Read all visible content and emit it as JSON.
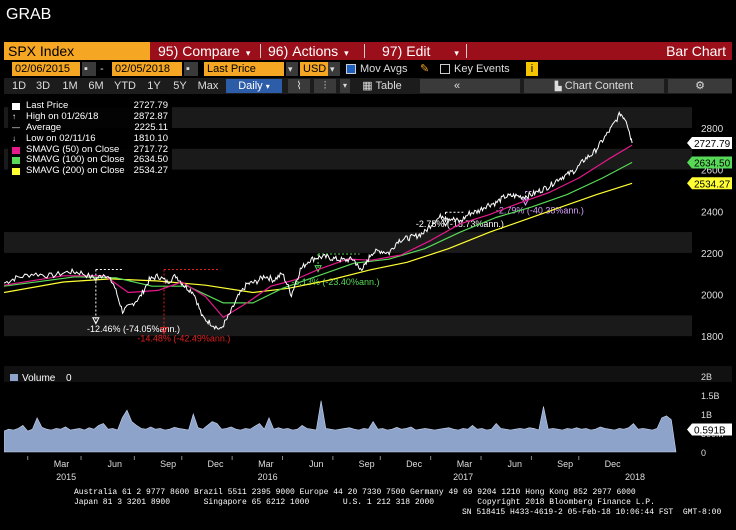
{
  "window": {
    "title": "GRAB"
  },
  "command_bar": {
    "security": "SPX Index",
    "compare": {
      "num": "95)",
      "label": "Compare"
    },
    "actions": {
      "num": "96)",
      "label": "Actions"
    },
    "edit": {
      "num": "97)",
      "label": "Edit"
    },
    "chart_type": "Bar Chart"
  },
  "params": {
    "start_date": "02/06/2015",
    "end_date": "02/05/2018",
    "field": "Last Price",
    "currency": "USD",
    "mov_avgs_label": "Mov Avgs",
    "mov_avgs_checked": true,
    "key_events_label": "Key Events",
    "key_events_checked": false,
    "info_badge": "i"
  },
  "range_bar": {
    "ranges": [
      "1D",
      "3D",
      "1M",
      "6M",
      "YTD",
      "1Y",
      "5Y",
      "Max"
    ],
    "frequency": "Daily",
    "table_label": "Table",
    "chart_content_label": "Chart Content"
  },
  "legend": [
    {
      "label": "Last Price",
      "value": "2727.79",
      "color": "#ffffff",
      "marker": "swatch"
    },
    {
      "label": "High on 01/26/18",
      "value": "2872.87",
      "color": "#ffffff",
      "marker": "up"
    },
    {
      "label": "Average",
      "value": "2225.11",
      "color": "#ffffff",
      "marker": "dash"
    },
    {
      "label": "Low on 02/11/16",
      "value": "1810.10",
      "color": "#ffffff",
      "marker": "down"
    },
    {
      "label": "SMAVG (50) on Close",
      "value": "2717.72",
      "color": "#e5198c",
      "marker": "swatch"
    },
    {
      "label": "SMAVG (100) on Close",
      "value": "2634.50",
      "color": "#57d957",
      "marker": "swatch"
    },
    {
      "label": "SMAVG (200) on Close",
      "value": "2534.27",
      "color": "#ffff33",
      "marker": "swatch"
    }
  ],
  "chart_data": {
    "type": "line",
    "y_ticks": [
      1800,
      2000,
      2200,
      2400,
      2600,
      2800
    ],
    "ylim": [
      1700,
      2920
    ],
    "x_labels": [
      {
        "t": 0.07,
        "label": "Mar"
      },
      {
        "t": 0.16,
        "label": "Jun"
      },
      {
        "t": 0.25,
        "label": "Sep"
      },
      {
        "t": 0.33,
        "label": "Dec"
      },
      {
        "t": 0.415,
        "label": "Mar"
      },
      {
        "t": 0.5,
        "label": "Jun"
      },
      {
        "t": 0.585,
        "label": "Sep"
      },
      {
        "t": 0.665,
        "label": "Dec"
      },
      {
        "t": 0.75,
        "label": "Mar"
      },
      {
        "t": 0.835,
        "label": "Jun"
      },
      {
        "t": 0.92,
        "label": "Sep"
      },
      {
        "t": 1.0,
        "label": "Dec"
      }
    ],
    "year_labels": [
      {
        "t": 0.115,
        "label": "2015"
      },
      {
        "t": 0.455,
        "label": "2016"
      },
      {
        "t": 0.785,
        "label": "2017"
      },
      {
        "t": 1.075,
        "label": "2018"
      }
    ],
    "last_price": {
      "name": "Last Price",
      "values": [
        [
          0.0,
          2055
        ],
        [
          0.02,
          2080
        ],
        [
          0.05,
          2100
        ],
        [
          0.08,
          2090
        ],
        [
          0.11,
          2110
        ],
        [
          0.13,
          2105
        ],
        [
          0.155,
          2075
        ],
        [
          0.17,
          2100
        ],
        [
          0.185,
          2050
        ],
        [
          0.2,
          1920
        ],
        [
          0.215,
          1950
        ],
        [
          0.23,
          1990
        ],
        [
          0.245,
          2070
        ],
        [
          0.26,
          2090
        ],
        [
          0.275,
          2060
        ],
        [
          0.29,
          2090
        ],
        [
          0.305,
          2040
        ],
        [
          0.32,
          2010
        ],
        [
          0.335,
          1890
        ],
        [
          0.35,
          1860
        ],
        [
          0.365,
          1830
        ],
        [
          0.38,
          1900
        ],
        [
          0.395,
          1990
        ],
        [
          0.41,
          2050
        ],
        [
          0.425,
          2060
        ],
        [
          0.44,
          2090
        ],
        [
          0.455,
          2070
        ],
        [
          0.47,
          2100
        ],
        [
          0.485,
          2000
        ],
        [
          0.5,
          2120
        ],
        [
          0.515,
          2165
        ],
        [
          0.53,
          2180
        ],
        [
          0.545,
          2180
        ],
        [
          0.56,
          2170
        ],
        [
          0.575,
          2165
        ],
        [
          0.59,
          2170
        ],
        [
          0.6,
          2120
        ],
        [
          0.61,
          2140
        ],
        [
          0.62,
          2200
        ],
        [
          0.635,
          2210
        ],
        [
          0.65,
          2200
        ],
        [
          0.665,
          2260
        ],
        [
          0.68,
          2270
        ],
        [
          0.695,
          2280
        ],
        [
          0.71,
          2300
        ],
        [
          0.725,
          2350
        ],
        [
          0.74,
          2380
        ],
        [
          0.755,
          2365
        ],
        [
          0.77,
          2350
        ],
        [
          0.785,
          2390
        ],
        [
          0.8,
          2400
        ],
        [
          0.815,
          2430
        ],
        [
          0.83,
          2440
        ],
        [
          0.845,
          2470
        ],
        [
          0.86,
          2475
        ],
        [
          0.875,
          2470
        ],
        [
          0.89,
          2480
        ],
        [
          0.905,
          2500
        ],
        [
          0.92,
          2520
        ],
        [
          0.935,
          2555
        ],
        [
          0.95,
          2575
        ],
        [
          0.965,
          2600
        ],
        [
          0.98,
          2650
        ],
        [
          0.995,
          2680
        ],
        [
          1.01,
          2740
        ],
        [
          1.025,
          2800
        ],
        [
          1.04,
          2870
        ],
        [
          1.05,
          2840
        ],
        [
          1.06,
          2727.79
        ]
      ]
    },
    "sma50": {
      "name": "SMAVG (50) on Close",
      "values": [
        [
          0.0,
          2045
        ],
        [
          0.1,
          2090
        ],
        [
          0.17,
          2090
        ],
        [
          0.21,
          2010
        ],
        [
          0.26,
          2020
        ],
        [
          0.3,
          2060
        ],
        [
          0.34,
          1990
        ],
        [
          0.37,
          1890
        ],
        [
          0.41,
          1960
        ],
        [
          0.45,
          2040
        ],
        [
          0.49,
          2070
        ],
        [
          0.53,
          2120
        ],
        [
          0.58,
          2170
        ],
        [
          0.62,
          2165
        ],
        [
          0.67,
          2190
        ],
        [
          0.72,
          2260
        ],
        [
          0.77,
          2340
        ],
        [
          0.82,
          2385
        ],
        [
          0.87,
          2440
        ],
        [
          0.92,
          2490
        ],
        [
          0.97,
          2560
        ],
        [
          1.02,
          2650
        ],
        [
          1.06,
          2717.72
        ]
      ]
    },
    "sma100": {
      "name": "SMAVG (100) on Close",
      "values": [
        [
          0.0,
          2040
        ],
        [
          0.12,
          2085
        ],
        [
          0.19,
          2080
        ],
        [
          0.25,
          2040
        ],
        [
          0.31,
          2040
        ],
        [
          0.37,
          1960
        ],
        [
          0.42,
          1960
        ],
        [
          0.47,
          2030
        ],
        [
          0.53,
          2090
        ],
        [
          0.59,
          2150
        ],
        [
          0.65,
          2170
        ],
        [
          0.71,
          2220
        ],
        [
          0.77,
          2300
        ],
        [
          0.83,
          2370
        ],
        [
          0.89,
          2420
        ],
        [
          0.95,
          2480
        ],
        [
          1.01,
          2560
        ],
        [
          1.06,
          2634.5
        ]
      ]
    },
    "sma200": {
      "name": "SMAVG (200) on Close",
      "values": [
        [
          0.0,
          2010
        ],
        [
          0.1,
          2060
        ],
        [
          0.18,
          2075
        ],
        [
          0.26,
          2065
        ],
        [
          0.34,
          2045
        ],
        [
          0.42,
          2010
        ],
        [
          0.48,
          2030
        ],
        [
          0.55,
          2070
        ],
        [
          0.62,
          2120
        ],
        [
          0.68,
          2155
        ],
        [
          0.75,
          2220
        ],
        [
          0.82,
          2300
        ],
        [
          0.88,
          2360
        ],
        [
          0.94,
          2420
        ],
        [
          1.0,
          2480
        ],
        [
          1.06,
          2534.27
        ]
      ]
    },
    "price_tags": [
      {
        "value": "2727.79",
        "y": 2727.79,
        "bg": "#ffffff",
        "fg": "#000000"
      },
      {
        "value": "2634.50",
        "y": 2634.5,
        "bg": "#57d957",
        "fg": "#000000"
      },
      {
        "value": "2534.27",
        "y": 2534.27,
        "bg": "#ffff33",
        "fg": "#000000"
      }
    ],
    "drawdowns": [
      {
        "label": "-12.46% (-74.05%ann.)",
        "color": "#ffffff",
        "t1": 0.155,
        "t2": 0.2,
        "y1": 2120,
        "y2": 1860,
        "lx": 0.14,
        "ly": 1820
      },
      {
        "label": "-14.48% (-42.49%ann.)",
        "color": "#e02020",
        "t1": 0.27,
        "t2": 0.365,
        "y1": 2120,
        "y2": 1812,
        "lx": 0.225,
        "ly": 1775
      },
      {
        "label": "-6.13% (-23.40%ann.)",
        "color": "#57d957",
        "t1": 0.53,
        "t2": 0.6,
        "y1": 2195,
        "y2": 2110,
        "lx": 0.485,
        "ly": 2045
      },
      {
        "label": "-2.75% (-18.73%ann.)",
        "color": "#ffffff",
        "t1": 0.745,
        "t2": 0.775,
        "y1": 2395,
        "y2": 2330,
        "lx": 0.695,
        "ly": 2325
      },
      {
        "label": "-2.79% (-40.38%ann.)",
        "color": "#d9a0ff",
        "t1": 0.88,
        "t2": 0.895,
        "y1": 2495,
        "y2": 2430,
        "lx": 0.83,
        "ly": 2390
      }
    ]
  },
  "volume": {
    "label": "Volume",
    "value": "0",
    "y_ticks": [
      "2B",
      "1.5B",
      "1B",
      "500M",
      "0"
    ],
    "last_tag": "0.591B",
    "bar_values": [
      0.55,
      0.6,
      0.58,
      0.62,
      0.7,
      0.55,
      0.6,
      0.9,
      0.65,
      0.6,
      0.58,
      0.62,
      0.6,
      0.66,
      0.58,
      0.6,
      0.62,
      0.58,
      0.64,
      0.6,
      0.7,
      0.75,
      0.6,
      0.62,
      0.58,
      0.9,
      1.1,
      0.8,
      0.7,
      0.62,
      0.6,
      0.66,
      0.6,
      0.62,
      0.58,
      0.6,
      0.65,
      0.62,
      0.6,
      0.58,
      1.0,
      0.64,
      0.6,
      0.7,
      0.8,
      0.75,
      0.6,
      0.62,
      0.66,
      0.6,
      0.58,
      0.62,
      0.6,
      0.68,
      0.75,
      0.6,
      0.9,
      0.6,
      0.64,
      0.6,
      0.62,
      0.58,
      0.6,
      0.7,
      0.62,
      0.6,
      0.58,
      1.35,
      0.62,
      0.6,
      0.58,
      0.6,
      0.62,
      0.64,
      0.6,
      0.58,
      0.62,
      0.6,
      0.8,
      0.6,
      0.62,
      0.58,
      0.6,
      0.65,
      0.6,
      0.62,
      0.66,
      0.58,
      0.6,
      0.62,
      0.6,
      0.58,
      0.6,
      0.62,
      0.64,
      0.6,
      0.58,
      0.62,
      0.6,
      0.7,
      0.6,
      0.62,
      0.58,
      0.6,
      0.75,
      0.62,
      0.6,
      0.58,
      0.6,
      0.62,
      0.6,
      0.64,
      0.62,
      0.58,
      1.2,
      0.6,
      0.62,
      0.6,
      0.58,
      0.62,
      0.6,
      0.64,
      0.6,
      0.62,
      0.58,
      0.6,
      0.66,
      0.62,
      0.6,
      0.58,
      0.62,
      0.6,
      0.64,
      0.75,
      0.6,
      0.62,
      0.6,
      0.58,
      0.62,
      0.9,
      0.95,
      0.85
    ]
  },
  "footer": {
    "line1": "Australia 61 2 9777 8600 Brazil 5511 2395 9000 Europe 44 20 7330 7500 Germany 49 69 9204 1210 Hong Kong 852 2977 6000",
    "line2": "Japan 81 3 3201 8900       Singapore 65 6212 1000       U.S. 1 212 318 2000         Copyright 2018 Bloomberg Finance L.P.",
    "line3": "SN 518415 H433-4619-2 05-Feb-18 10:06:44 FST  GMT-8:00"
  }
}
